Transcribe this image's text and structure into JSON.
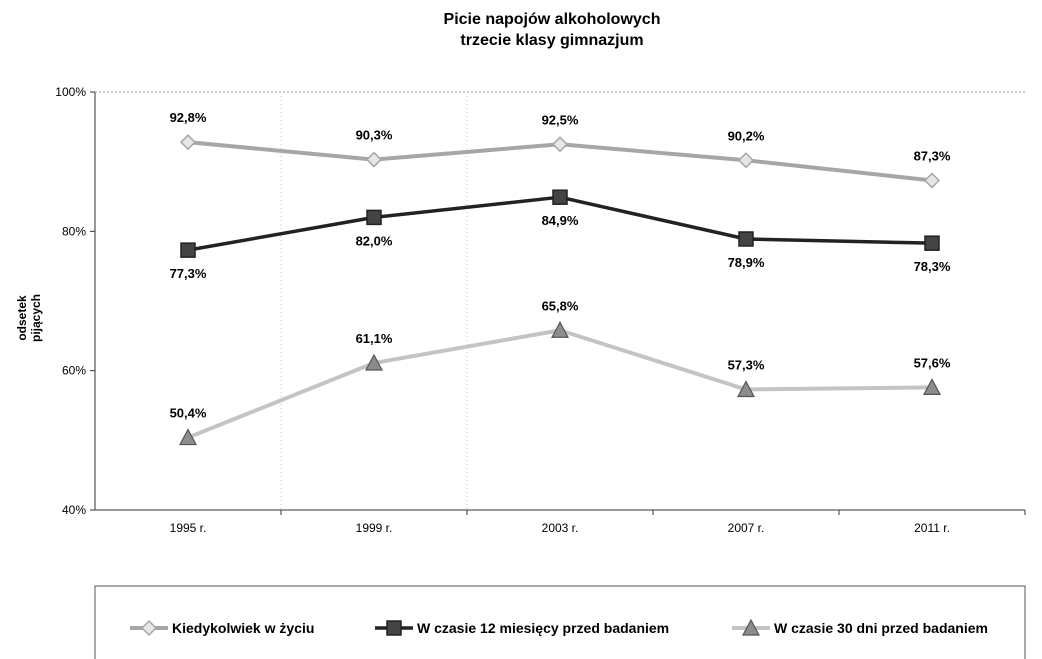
{
  "chart_data": {
    "type": "line",
    "title": "Picie napojów alkoholowych",
    "subtitle": "trzecie klasy gimnazjum",
    "ylabel": "odsetek pijących",
    "ylabel_lines": [
      "odsetek",
      "pijących"
    ],
    "xlabel": "",
    "ylim": [
      40,
      100
    ],
    "yticks": [
      40,
      60,
      80,
      100
    ],
    "ytick_labels": [
      "40%",
      "60%",
      "80%",
      "100%"
    ],
    "categories": [
      "1995 r.",
      "1999 r.",
      "2003 r.",
      "2007 r.",
      "2011 r."
    ],
    "grid": false,
    "legend_position": "bottom",
    "series": [
      {
        "name": "Kiedykolwiek w życiu",
        "values": [
          92.8,
          90.3,
          92.5,
          90.2,
          87.3
        ],
        "labels": [
          "92,8%",
          "90,3%",
          "92,5%",
          "90,2%",
          "87,3%"
        ],
        "marker": "diamond",
        "color": "#a6a6a6",
        "marker_fill": "#e6e6e6",
        "label_position": "above"
      },
      {
        "name": "W czasie 12 miesięcy przed badaniem",
        "values": [
          77.3,
          82.0,
          84.9,
          78.9,
          78.3
        ],
        "labels": [
          "77,3%",
          "82,0%",
          "84,9%",
          "78,9%",
          "78,3%"
        ],
        "marker": "square",
        "color": "#222222",
        "marker_fill": "#444444",
        "label_position": "below"
      },
      {
        "name": "W czasie 30 dni przed badaniem",
        "values": [
          50.4,
          61.1,
          65.8,
          57.3,
          57.6
        ],
        "labels": [
          "50,4%",
          "61,1%",
          "65,8%",
          "57,3%",
          "57,6%"
        ],
        "marker": "triangle",
        "color": "#c4c4c4",
        "marker_fill": "#8c8c8c",
        "label_position": "above"
      }
    ]
  }
}
